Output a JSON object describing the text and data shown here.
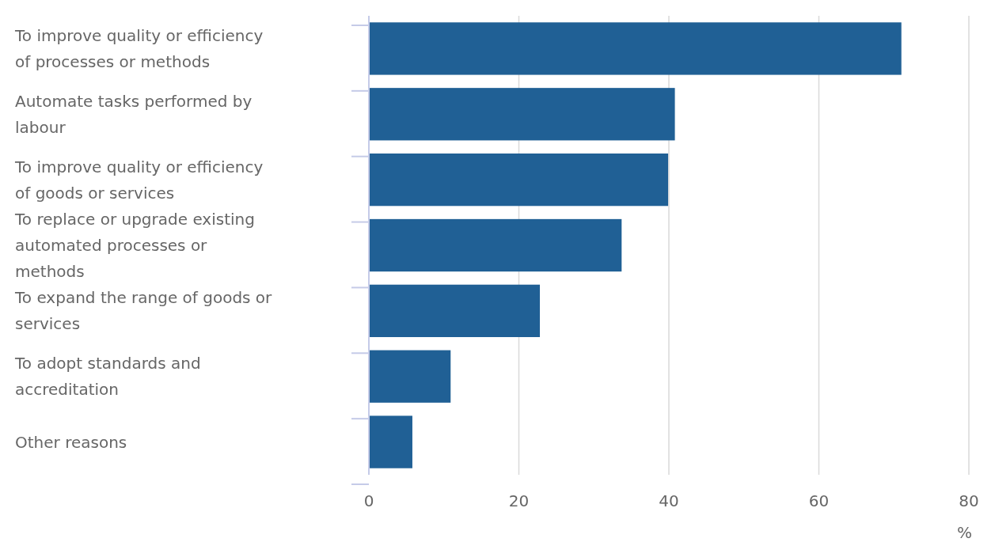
{
  "chart_data": {
    "type": "bar",
    "orientation": "horizontal",
    "categories": [
      "To improve quality or efficiency of processes or methods",
      "Automate tasks performed by labour",
      "To improve quality or efficiency of goods or services",
      "To replace or upgrade existing automated processes or methods",
      "To expand the range of goods or services",
      "To adopt standards and accreditation",
      "Other reasons"
    ],
    "values": [
      71,
      40.8,
      39.9,
      33.7,
      22.8,
      10.9,
      5.8
    ],
    "color": "#206095",
    "xlim": [
      0,
      80
    ],
    "xticks": [
      0,
      20,
      40,
      60,
      80
    ],
    "xlabel": "%",
    "grid": "x"
  }
}
